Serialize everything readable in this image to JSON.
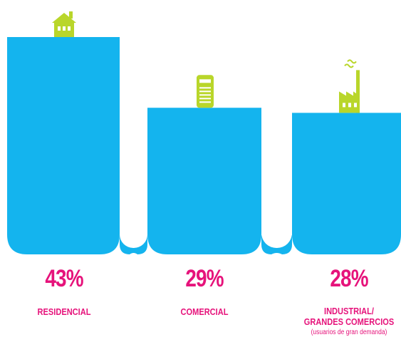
{
  "chart_data": {
    "type": "bar",
    "categories": [
      "RESIDENCIAL",
      "COMERCIAL",
      "INDUSTRIAL/\nGRANDES COMERCIOS"
    ],
    "values": [
      43,
      29,
      28
    ],
    "value_labels": [
      "43%",
      "29%",
      "28%"
    ],
    "category_lines": [
      [
        "RESIDENCIAL"
      ],
      [
        "COMERCIAL"
      ],
      [
        "INDUSTRIAL/",
        "GRANDES COMERCIOS"
      ]
    ],
    "category_notes": [
      "",
      "",
      "(usuarios de gran demanda)"
    ],
    "icons": [
      "house-icon",
      "shop-building-icon",
      "factory-icon"
    ],
    "title": "",
    "xlabel": "",
    "ylabel": "",
    "ylim": [
      0,
      43
    ],
    "grid": false,
    "legend": "none"
  },
  "colors": {
    "bar": "#14b4ee",
    "label": "#e6137b",
    "icon": "#b9d62a",
    "icon_detail": "#ffffff"
  }
}
